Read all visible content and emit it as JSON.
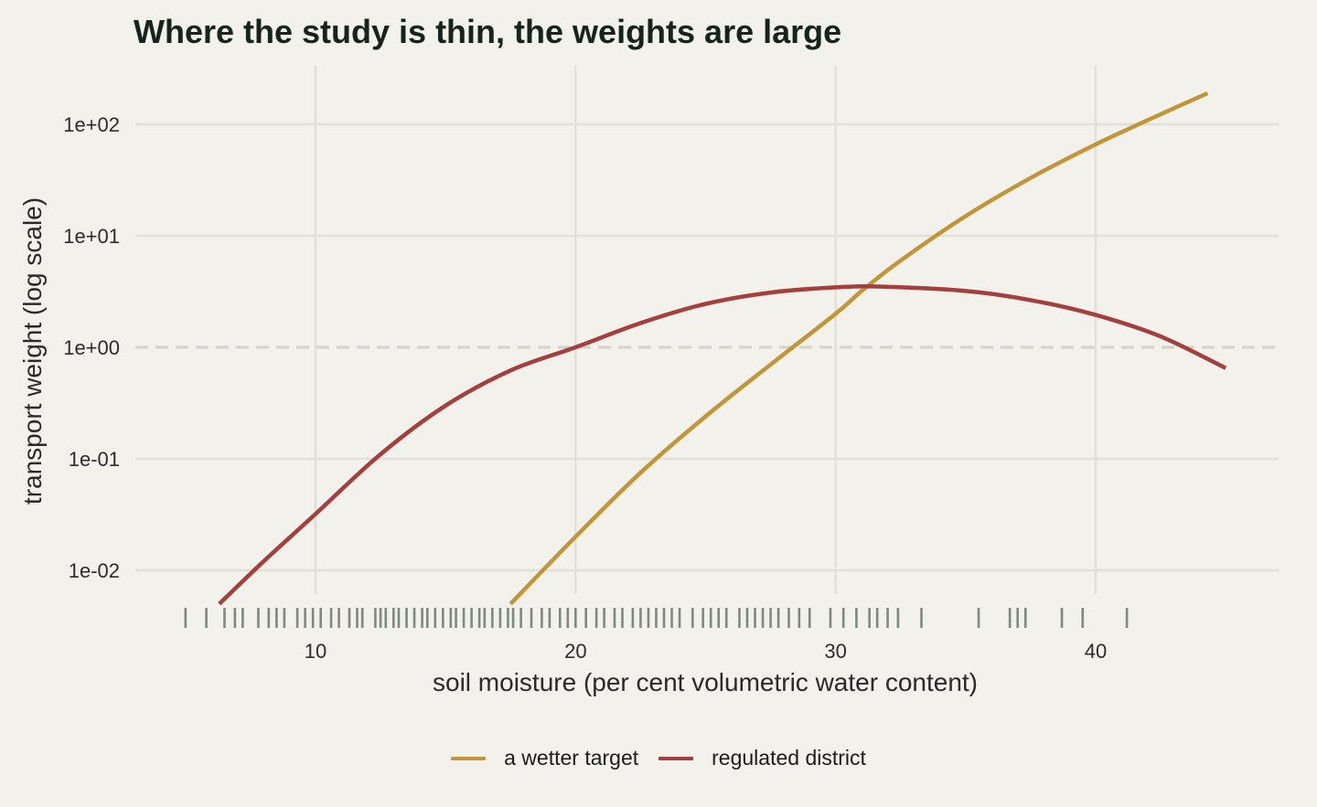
{
  "chart_data": {
    "type": "line",
    "title": "Where the study is thin, the weights are large",
    "xlabel": "soil moisture (per cent volumetric water content)",
    "ylabel": "transport weight (log scale)",
    "y_scale": "log",
    "xlim": [
      2,
      47
    ],
    "ylim": [
      0.0035,
      300
    ],
    "x_ticks": [
      10,
      20,
      30,
      40
    ],
    "y_ticks": [
      0.01,
      0.1,
      1,
      10,
      100
    ],
    "y_tick_labels": [
      "1e-02",
      "1e-01",
      "1e+00",
      "1e+01",
      "1e+02"
    ],
    "grid": true,
    "reference_line": {
      "y": 1,
      "style": "dashed"
    },
    "legend_position": "bottom",
    "series": [
      {
        "name": "a wetter target",
        "color": "#c29538",
        "x": [
          17.5,
          20,
          22.5,
          25,
          27.5,
          30,
          31,
          32.5,
          35,
          37.5,
          40,
          42.5,
          44.3
        ],
        "y": [
          0.005,
          0.02,
          0.075,
          0.24,
          0.7,
          2.0,
          3.2,
          6.0,
          15,
          33,
          66,
          123,
          190
        ]
      },
      {
        "name": "regulated district",
        "color": "#a53f3d",
        "x": [
          6.3,
          8,
          10,
          12.5,
          15,
          17.5,
          20,
          22.5,
          25,
          27.5,
          30,
          31.8,
          35,
          37.5,
          40,
          42.5,
          45
        ],
        "y": [
          0.005,
          0.012,
          0.032,
          0.11,
          0.3,
          0.62,
          1.0,
          1.65,
          2.45,
          3.1,
          3.45,
          3.5,
          3.2,
          2.65,
          1.95,
          1.25,
          0.65
        ]
      }
    ],
    "rug": {
      "x": [
        5.0,
        5.8,
        6.5,
        6.9,
        7.2,
        7.8,
        8.2,
        8.5,
        8.8,
        9.3,
        9.6,
        9.9,
        10.2,
        10.6,
        10.9,
        11.3,
        11.6,
        11.8,
        12.3,
        12.5,
        12.7,
        13.0,
        13.2,
        13.5,
        13.8,
        14.1,
        14.3,
        14.6,
        14.9,
        15.2,
        15.4,
        15.7,
        16.0,
        16.3,
        16.5,
        16.8,
        17.1,
        17.4,
        17.6,
        17.9,
        18.3,
        18.7,
        19.0,
        19.4,
        19.7,
        20.0,
        20.4,
        20.8,
        21.1,
        21.5,
        21.8,
        22.2,
        22.5,
        22.8,
        23.1,
        23.4,
        23.7,
        24.0,
        24.5,
        24.9,
        25.2,
        25.5,
        25.8,
        26.3,
        26.6,
        26.9,
        27.2,
        27.5,
        27.8,
        28.2,
        28.6,
        29.0,
        29.8,
        30.3,
        30.8,
        31.3,
        31.6,
        32.0,
        32.4,
        33.3,
        35.5,
        36.7,
        37.0,
        37.3,
        38.7,
        39.5,
        41.2
      ],
      "color": "#7e8a7e"
    }
  },
  "legend": {
    "items": [
      {
        "label": "a wetter target",
        "color": "#c29538"
      },
      {
        "label": "regulated district",
        "color": "#a53f3d"
      }
    ]
  }
}
